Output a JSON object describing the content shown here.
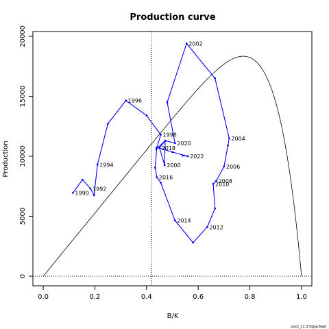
{
  "chart_data": {
    "type": "line",
    "title": "Production curve",
    "xlabel": "B/K",
    "ylabel": "Production",
    "xlim": [
      -0.04,
      1.04
    ],
    "ylim": [
      -800,
      20400
    ],
    "x_ticks": [
      "0.0",
      "0.2",
      "0.4",
      "0.6",
      "0.8",
      "1.0"
    ],
    "y_ticks": [
      "0",
      "5000",
      "10000",
      "15000",
      "20000"
    ],
    "msy_bk": 0.42,
    "msy_production": 11050,
    "curve_xmax": 1.0,
    "grid": false,
    "legend": "none",
    "colors": {
      "series": "#0000ff",
      "curve": "#000000",
      "reference": "#000000"
    },
    "series": [
      {
        "points": [
          [
            0.115,
            6950
          ],
          [
            0.152,
            8050
          ],
          [
            0.183,
            7300
          ],
          [
            0.197,
            6750
          ],
          [
            0.21,
            9300
          ],
          [
            0.25,
            12700
          ],
          [
            0.32,
            14650
          ],
          [
            0.4,
            13400
          ],
          [
            0.455,
            11800
          ],
          [
            0.438,
            10600
          ],
          [
            0.472,
            11300
          ],
          [
            0.47,
            9250
          ],
          [
            0.45,
            10700
          ],
          [
            0.472,
            11300
          ],
          [
            0.51,
            11100
          ],
          [
            0.48,
            14500
          ],
          [
            0.555,
            19400
          ],
          [
            0.665,
            16500
          ],
          [
            0.72,
            11500
          ],
          [
            0.715,
            10900
          ],
          [
            0.7,
            9150
          ],
          [
            0.67,
            7950
          ],
          [
            0.658,
            7700
          ],
          [
            0.665,
            5650
          ],
          [
            0.635,
            4100
          ],
          [
            0.58,
            2800
          ],
          [
            0.51,
            4650
          ],
          [
            0.455,
            7800
          ],
          [
            0.44,
            8250
          ],
          [
            0.433,
            9050
          ],
          [
            0.44,
            10750
          ],
          [
            0.5,
            10350
          ],
          [
            0.56,
            10000
          ],
          [
            0.54,
            10050
          ]
        ]
      }
    ],
    "year_labels": [
      {
        "text": "1990",
        "x": 0.115,
        "y": 6950
      },
      {
        "text": "1992",
        "x": 0.183,
        "y": 7300
      },
      {
        "text": "1994",
        "x": 0.21,
        "y": 9300
      },
      {
        "text": "1996",
        "x": 0.32,
        "y": 14650
      },
      {
        "text": "1998",
        "x": 0.455,
        "y": 11800
      },
      {
        "text": "2000",
        "x": 0.47,
        "y": 9250
      },
      {
        "text": "2002",
        "x": 0.555,
        "y": 19400
      },
      {
        "text": "2004",
        "x": 0.72,
        "y": 11500
      },
      {
        "text": "2006",
        "x": 0.7,
        "y": 9150
      },
      {
        "text": "2008",
        "x": 0.67,
        "y": 7950
      },
      {
        "text": "2010",
        "x": 0.658,
        "y": 7700
      },
      {
        "text": "2012",
        "x": 0.635,
        "y": 4100
      },
      {
        "text": "2014",
        "x": 0.51,
        "y": 4650
      },
      {
        "text": "2016",
        "x": 0.44,
        "y": 8250
      },
      {
        "text": "2018",
        "x": 0.45,
        "y": 10700
      },
      {
        "text": "2020",
        "x": 0.51,
        "y": 11100
      },
      {
        "text": "2022",
        "x": 0.56,
        "y": 10000
      }
    ]
  },
  "footer": "spict_v1.3.5@ac6aaf"
}
